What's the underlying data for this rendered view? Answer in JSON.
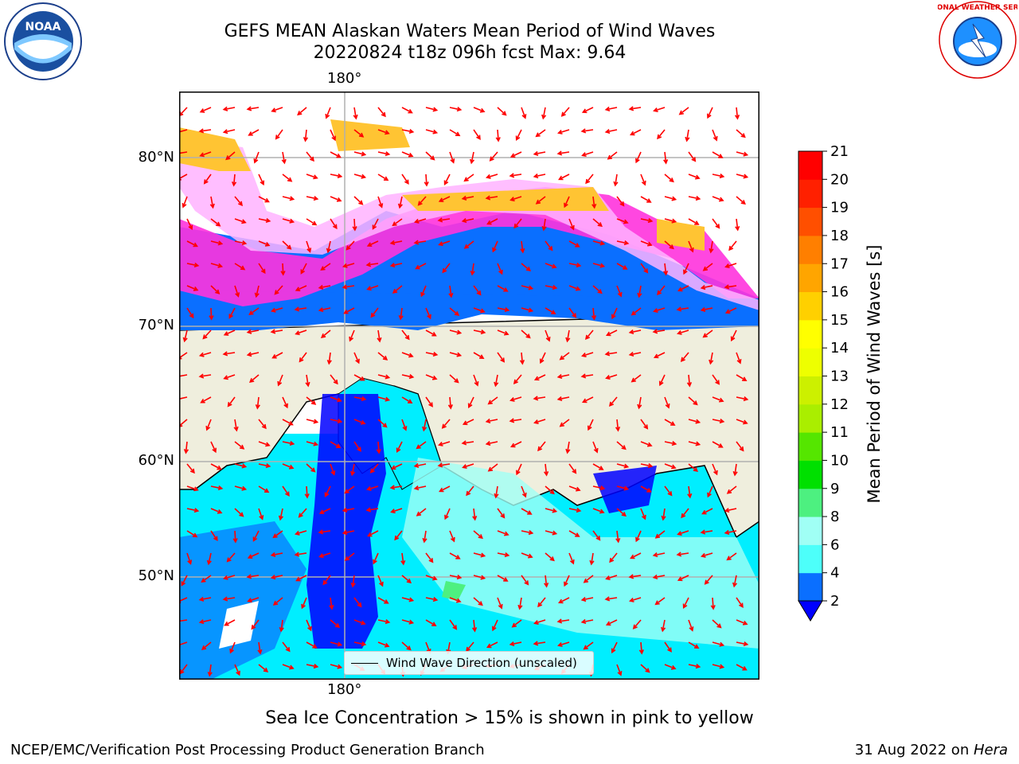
{
  "title": {
    "line1": "GEFS MEAN Alaskan Waters Mean Period of Wind Waves",
    "line2": "20220824 t18z 096h fcst   Max: 9.64"
  },
  "map": {
    "lon_label_top": "180°",
    "lon_label_bottom": "180°",
    "lat_labels": [
      "80°N",
      "70°N",
      "60°N",
      "50°N"
    ],
    "legend_label": "Wind Wave Direction (unscaled)",
    "land_color": "#efeedd",
    "arrow_color": "#ff0000",
    "ice_colors": [
      "#ff33dd",
      "#ffb3ff",
      "#ffc433"
    ]
  },
  "colorbar": {
    "label": "Mean Period of Wind Waves [s]",
    "ticks": [
      "2",
      "4",
      "6",
      "8",
      "9",
      "10",
      "11",
      "12",
      "13",
      "14",
      "15",
      "16",
      "17",
      "18",
      "19",
      "20",
      "21"
    ],
    "colors": [
      "#0a6fff",
      "#00eeff",
      "#4dfffa",
      "#a0fff5",
      "#4df080",
      "#00e000",
      "#55e600",
      "#aaee00",
      "#ccf000",
      "#eeff00",
      "#ffff00",
      "#ffd000",
      "#ffa500",
      "#ff7f00",
      "#ff4f00",
      "#ff2000",
      "#ff0000"
    ],
    "underflow_color": "#0000ff"
  },
  "note": "Sea Ice Concentration > 15% is shown in pink to yellow",
  "footer": {
    "left": "NCEP/EMC/Verification Post Processing Product Generation Branch",
    "right_prefix": "31 Aug 2022 on ",
    "right_machine": "Hera"
  },
  "logos": {
    "noaa": "NOAA",
    "nws": "NATIONAL WEATHER SERVICE"
  }
}
